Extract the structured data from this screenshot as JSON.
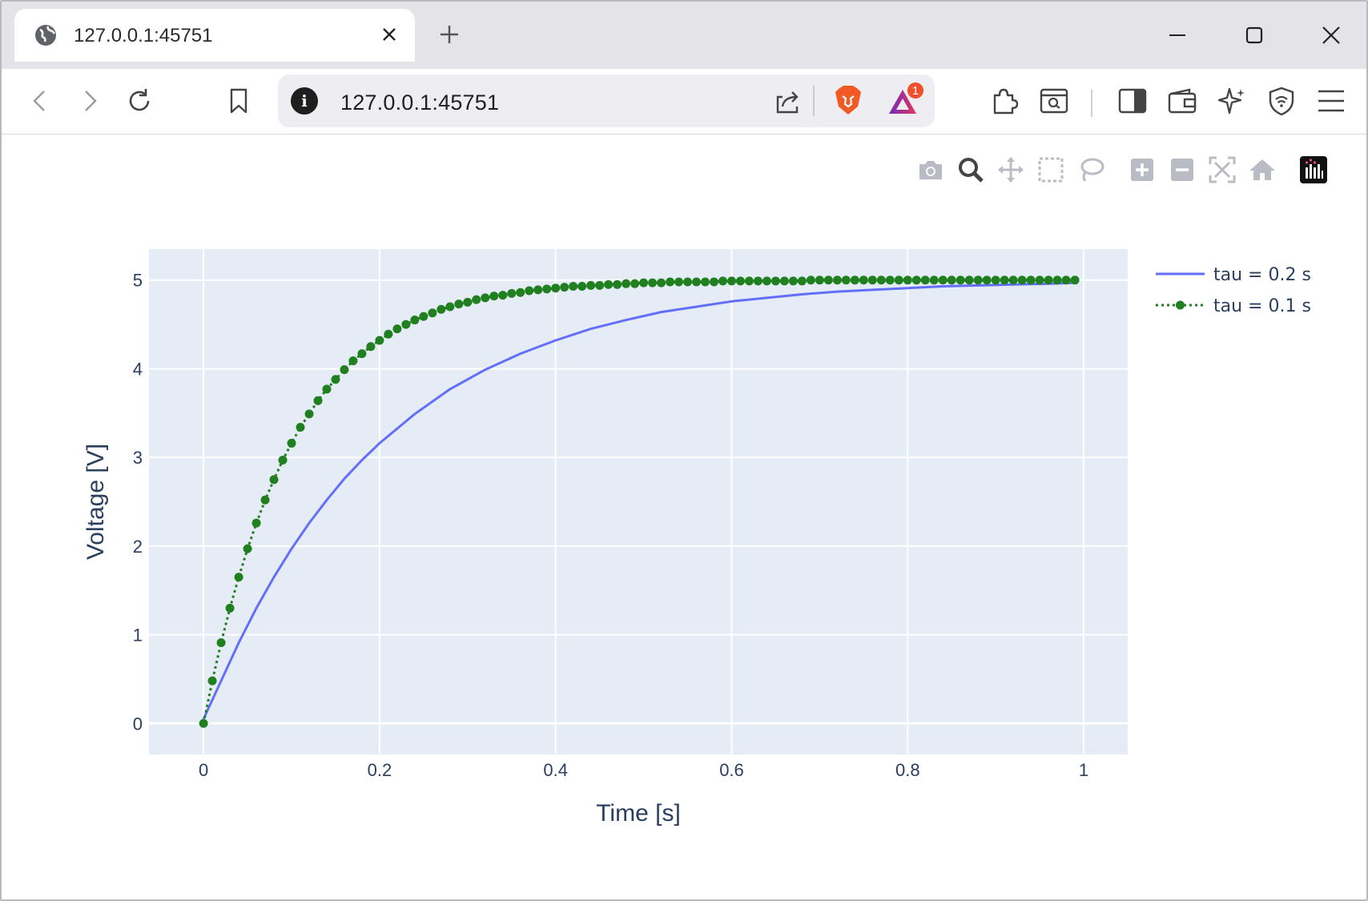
{
  "browser": {
    "tab_title": "127.0.0.1:45751",
    "url": "127.0.0.1:45751",
    "rewards_badge": "1",
    "icons": [
      "globe-icon",
      "close-icon",
      "plus-icon",
      "minimize-icon",
      "maximize-icon",
      "window-close-icon",
      "back-icon",
      "forward-icon",
      "reload-icon",
      "bookmark-icon",
      "info-icon",
      "share-icon",
      "brave-lion-icon",
      "rewards-triangle-icon",
      "extensions-icon",
      "screenshot-search-icon",
      "sidebar-icon",
      "wallet-icon",
      "leo-ai-icon",
      "vpn-shield-icon",
      "menu-icon"
    ]
  },
  "modebar": {
    "buttons": [
      "camera-icon",
      "zoom-icon",
      "pan-icon",
      "box-select-icon",
      "lasso-icon",
      "zoom-in-icon",
      "zoom-out-icon",
      "autoscale-icon",
      "reset-axes-icon",
      "plotly-logo-icon"
    ]
  },
  "chart_data": {
    "type": "line",
    "xlabel": "Time [s]",
    "ylabel": "Voltage [V]",
    "xlim": [
      -0.062,
      1.05
    ],
    "ylim": [
      -0.35,
      5.35
    ],
    "xticks": [
      "0",
      "0.2",
      "0.4",
      "0.6",
      "0.8",
      "1"
    ],
    "yticks": [
      "0",
      "1",
      "2",
      "3",
      "4",
      "5"
    ],
    "grid": true,
    "legend_position": "top-right",
    "plot_bgcolor": "#e5ecf6",
    "series": [
      {
        "name": "tau = 0.2 s",
        "mode": "lines",
        "color": "#636efa",
        "x": [
          0,
          0.02,
          0.04,
          0.06,
          0.08,
          0.1,
          0.12,
          0.14,
          0.16,
          0.18,
          0.2,
          0.24,
          0.28,
          0.32,
          0.36,
          0.4,
          0.44,
          0.48,
          0.52,
          0.56,
          0.6,
          0.64,
          0.68,
          0.72,
          0.76,
          0.8,
          0.84,
          0.88,
          0.92,
          0.96,
          0.99
        ],
        "y": [
          0.05,
          0.48,
          0.91,
          1.3,
          1.65,
          1.97,
          2.26,
          2.52,
          2.76,
          2.97,
          3.16,
          3.49,
          3.77,
          3.99,
          4.17,
          4.32,
          4.45,
          4.55,
          4.64,
          4.7,
          4.76,
          4.8,
          4.84,
          4.87,
          4.89,
          4.91,
          4.93,
          4.94,
          4.95,
          4.96,
          4.97
        ]
      },
      {
        "name": "tau = 0.1 s",
        "mode": "lines+markers",
        "dash": "dot",
        "color": "#207f1e",
        "x": [
          0,
          0.01,
          0.02,
          0.03,
          0.04,
          0.05,
          0.06,
          0.07,
          0.08,
          0.09,
          0.1,
          0.11,
          0.12,
          0.13,
          0.14,
          0.15,
          0.16,
          0.17,
          0.18,
          0.19,
          0.2,
          0.21,
          0.22,
          0.23,
          0.24,
          0.25,
          0.26,
          0.27,
          0.28,
          0.29,
          0.3,
          0.31,
          0.32,
          0.33,
          0.34,
          0.35,
          0.36,
          0.37,
          0.38,
          0.39,
          0.4,
          0.41,
          0.42,
          0.43,
          0.44,
          0.45,
          0.46,
          0.47,
          0.48,
          0.49,
          0.5,
          0.51,
          0.52,
          0.53,
          0.54,
          0.55,
          0.56,
          0.57,
          0.58,
          0.59,
          0.6,
          0.61,
          0.62,
          0.63,
          0.64,
          0.65,
          0.66,
          0.67,
          0.68,
          0.69,
          0.7,
          0.71,
          0.72,
          0.73,
          0.74,
          0.75,
          0.76,
          0.77,
          0.78,
          0.79,
          0.8,
          0.81,
          0.82,
          0.83,
          0.84,
          0.85,
          0.86,
          0.87,
          0.88,
          0.89,
          0.9,
          0.91,
          0.92,
          0.93,
          0.94,
          0.95,
          0.96,
          0.97,
          0.98,
          0.99
        ],
        "y": [
          0.0,
          0.48,
          0.91,
          1.3,
          1.65,
          1.97,
          2.26,
          2.52,
          2.75,
          2.97,
          3.16,
          3.34,
          3.49,
          3.64,
          3.77,
          3.88,
          3.99,
          4.09,
          4.17,
          4.25,
          4.32,
          4.39,
          4.45,
          4.5,
          4.55,
          4.59,
          4.63,
          4.67,
          4.7,
          4.73,
          4.75,
          4.78,
          4.8,
          4.82,
          4.83,
          4.85,
          4.86,
          4.88,
          4.89,
          4.9,
          4.91,
          4.92,
          4.93,
          4.93,
          4.94,
          4.94,
          4.95,
          4.95,
          4.96,
          4.96,
          4.97,
          4.97,
          4.97,
          4.98,
          4.98,
          4.98,
          4.98,
          4.98,
          4.98,
          4.99,
          4.99,
          4.99,
          4.99,
          4.99,
          4.99,
          4.99,
          4.99,
          4.99,
          4.99,
          5.0,
          5.0,
          5.0,
          5.0,
          5.0,
          5.0,
          5.0,
          5.0,
          5.0,
          5.0,
          5.0,
          5.0,
          5.0,
          5.0,
          5.0,
          5.0,
          5.0,
          5.0,
          5.0,
          5.0,
          5.0,
          5.0,
          5.0,
          5.0,
          5.0,
          5.0,
          5.0,
          5.0,
          5.0,
          5.0,
          5.0
        ]
      }
    ]
  }
}
